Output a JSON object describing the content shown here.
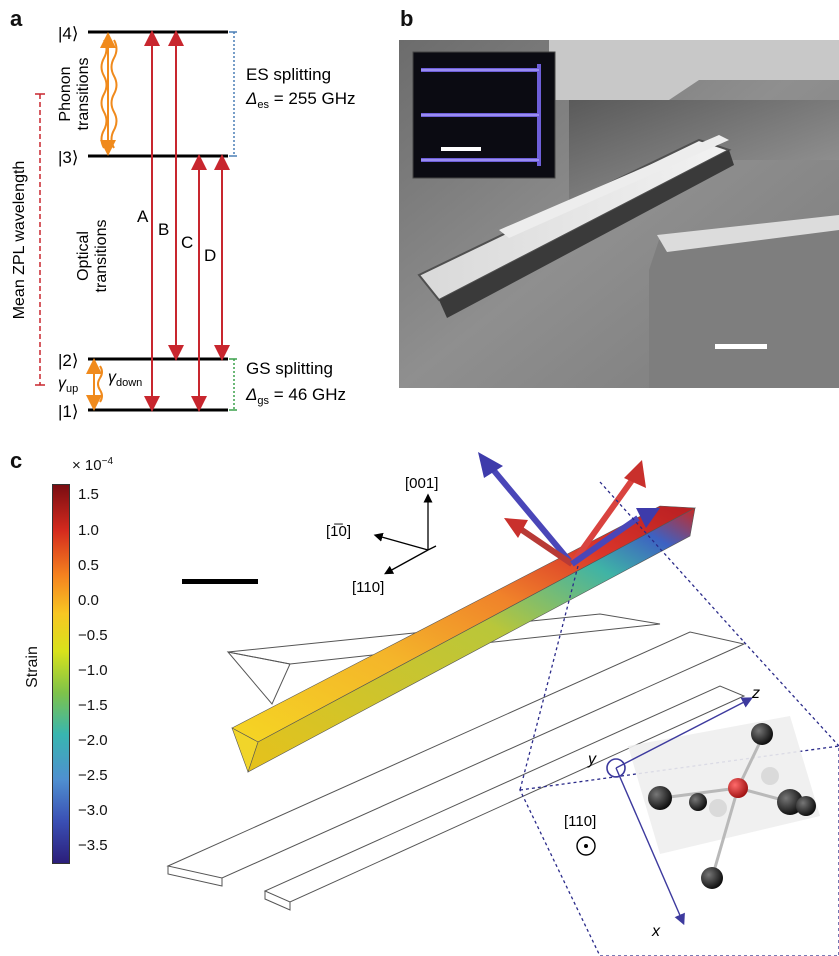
{
  "panel_a": {
    "label": "a",
    "levels": [
      "|4⟩",
      "|3⟩",
      "|2⟩",
      "|1⟩"
    ],
    "phonon_label_1": "Phonon",
    "phonon_label_2": "transitions",
    "optical_label_1": "Optical",
    "optical_label_2": "transitions",
    "mean_zpl": "Mean ZPL wavelength",
    "transitions": [
      "A",
      "B",
      "C",
      "D"
    ],
    "es_splitting": "ES splitting",
    "es_symbol": "Δ",
    "es_sub": "es",
    "es_value": " = 255 GHz",
    "gs_splitting": "GS splitting",
    "gs_symbol": "Δ",
    "gs_sub": "gs",
    "gs_value": " = 46 GHz",
    "gamma_up": "γ",
    "gamma_up_sub": "up",
    "gamma_down": "γ",
    "gamma_down_sub": "down",
    "colors": {
      "optical": "#c8262e",
      "phonon": "#f08a1c",
      "es_dash": "#4a7fb5",
      "gs_dash": "#3aa04a",
      "zpl_dash": "#c8262e"
    }
  },
  "panel_b": {
    "label": "b"
  },
  "panel_c": {
    "label": "c",
    "colorbar": {
      "title": "Strain",
      "multiplier": "× 10",
      "exponent": "−4",
      "ticks": [
        "1.5",
        "1.0",
        "0.5",
        "0.0",
        "−0.5",
        "−1.0",
        "−1.5",
        "−2.0",
        "−2.5",
        "−3.0",
        "−3.5"
      ],
      "colors": [
        "#7a0d12",
        "#d42a1e",
        "#f5831f",
        "#f7c623",
        "#d8e21b",
        "#7ec24a",
        "#38b6b0",
        "#4f8fd0",
        "#3a4fb4",
        "#2b1e7a"
      ]
    },
    "axes": {
      "up": "[001]",
      "left": "[1̅0]",
      "down": "[110]"
    },
    "inset": {
      "dir": "[110]",
      "z": "z",
      "y": "y",
      "x": "x"
    }
  }
}
